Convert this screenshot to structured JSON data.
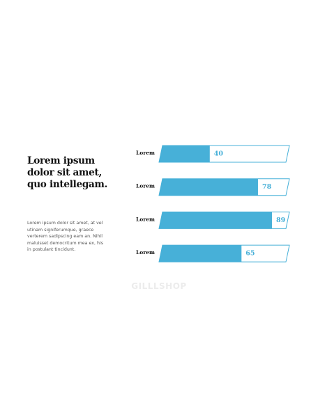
{
  "heading_lines": [
    "Lorem ipsum",
    "dolor sit amet,",
    "quo intellegam."
  ],
  "body_lines": [
    "Lorem ipsum dolor sit amet, at vel",
    "utinam signiferumque,  graece",
    "verterem  sadipscing eam an. Nihil",
    "maluisset democritum  mea ex, his",
    "in postulant tincidunt."
  ],
  "watermark": "GILLLSHOP",
  "colors": {
    "accent": "#47b0d8",
    "outline": "#47b0d8",
    "text": "#111111"
  },
  "chart_data": {
    "type": "bar",
    "orientation": "horizontal",
    "categories": [
      "Lorem",
      "Lorem",
      "Lorem",
      "Lorem"
    ],
    "values": [
      40,
      78,
      89,
      65
    ],
    "xlim": [
      0,
      100
    ],
    "grid": false
  }
}
